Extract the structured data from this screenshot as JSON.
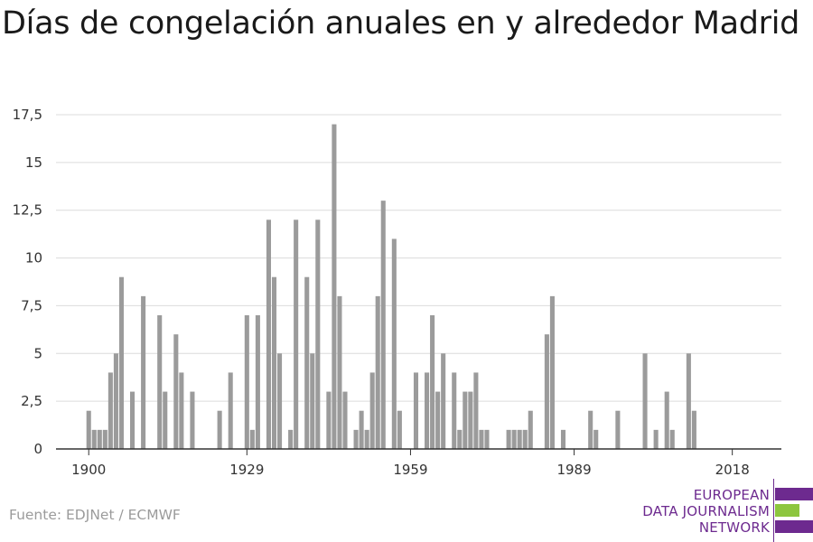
{
  "title": "Días de congelación anuales en y alrededor Madrid",
  "source": "Fuente: EDJNet / ECMWF",
  "logo": {
    "line1": "EUROPEAN",
    "line2": "DATA JOURNALISM",
    "line3": "NETWORK"
  },
  "colors": {
    "bar": "#9b9b9b",
    "grid": "#dcdcdc",
    "axis": "#333333",
    "logo_purple": "#6d2a8f",
    "logo_green": "#8dc63f"
  },
  "chart_data": {
    "type": "bar",
    "title": "Días de congelación anuales en y alrededor Madrid",
    "xlabel": "",
    "ylabel": "",
    "xlim": [
      1894,
      2027
    ],
    "ylim": [
      0,
      17.5
    ],
    "grid": true,
    "x_ticks": [
      {
        "value": 1900,
        "label": "1900"
      },
      {
        "value": 1929,
        "label": "1929"
      },
      {
        "value": 1959,
        "label": "1959"
      },
      {
        "value": 1989,
        "label": "1989"
      },
      {
        "value": 2018,
        "label": "2018"
      }
    ],
    "y_ticks": [
      {
        "value": 0,
        "label": "0"
      },
      {
        "value": 2.5,
        "label": "2,5"
      },
      {
        "value": 5,
        "label": "5"
      },
      {
        "value": 7.5,
        "label": "7,5"
      },
      {
        "value": 10,
        "label": "10"
      },
      {
        "value": 12.5,
        "label": "12,5"
      },
      {
        "value": 15,
        "label": "15"
      },
      {
        "value": 17.5,
        "label": "17,5"
      }
    ],
    "x": [
      1900,
      1901,
      1902,
      1903,
      1904,
      1905,
      1906,
      1907,
      1908,
      1909,
      1910,
      1911,
      1912,
      1913,
      1914,
      1915,
      1916,
      1917,
      1918,
      1919,
      1920,
      1921,
      1922,
      1923,
      1924,
      1925,
      1926,
      1927,
      1928,
      1929,
      1930,
      1931,
      1932,
      1933,
      1934,
      1935,
      1936,
      1937,
      1938,
      1939,
      1940,
      1941,
      1942,
      1943,
      1944,
      1945,
      1946,
      1947,
      1948,
      1949,
      1950,
      1951,
      1952,
      1953,
      1954,
      1955,
      1956,
      1957,
      1958,
      1959,
      1960,
      1961,
      1962,
      1963,
      1964,
      1965,
      1966,
      1967,
      1968,
      1969,
      1970,
      1971,
      1972,
      1973,
      1974,
      1975,
      1976,
      1977,
      1978,
      1979,
      1980,
      1981,
      1982,
      1983,
      1984,
      1985,
      1986,
      1987,
      1988,
      1989,
      1990,
      1991,
      1992,
      1993,
      1994,
      1995,
      1996,
      1997,
      1998,
      1999,
      2000,
      2001,
      2002,
      2003,
      2004,
      2005,
      2006,
      2007,
      2008,
      2009,
      2010,
      2011,
      2012,
      2013,
      2014,
      2015,
      2016,
      2017,
      2018,
      2019,
      2020
    ],
    "values": [
      2,
      1,
      1,
      1,
      4,
      5,
      9,
      0,
      3,
      0,
      8,
      0,
      0,
      7,
      3,
      0,
      6,
      4,
      0,
      3,
      0,
      0,
      0,
      0,
      2,
      0,
      4,
      0,
      0,
      7,
      1,
      7,
      0,
      12,
      9,
      5,
      0,
      1,
      12,
      0,
      9,
      5,
      12,
      0,
      3,
      17,
      8,
      3,
      0,
      1,
      2,
      1,
      4,
      8,
      13,
      0,
      11,
      2,
      0,
      0,
      4,
      0,
      4,
      7,
      3,
      5,
      0,
      4,
      1,
      3,
      3,
      4,
      1,
      1,
      0,
      0,
      0,
      1,
      1,
      1,
      1,
      2,
      0,
      0,
      6,
      8,
      0,
      1,
      0,
      0,
      0,
      0,
      2,
      1,
      0,
      0,
      0,
      2,
      0,
      0,
      0,
      0,
      5,
      0,
      1,
      0,
      3,
      1,
      0,
      0,
      5,
      2,
      0,
      0,
      0,
      0,
      0,
      0,
      0,
      0,
      0
    ]
  }
}
